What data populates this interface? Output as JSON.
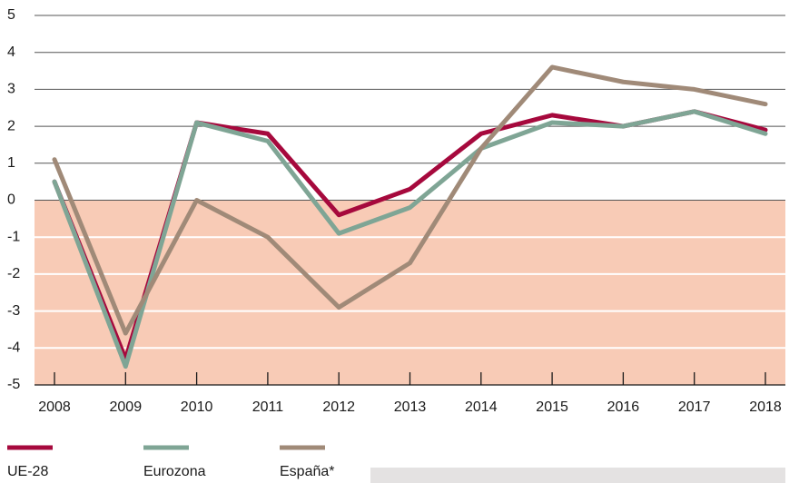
{
  "chart_data": {
    "type": "line",
    "categories": [
      "2008",
      "2009",
      "2010",
      "2011",
      "2012",
      "2013",
      "2014",
      "2015",
      "2016",
      "2017",
      "2018"
    ],
    "series": [
      {
        "name": "UE-28",
        "color": "#a6093d",
        "values": [
          0.5,
          -4.3,
          2.1,
          1.8,
          -0.4,
          0.3,
          1.8,
          2.3,
          2.0,
          2.4,
          1.9
        ]
      },
      {
        "name": "Eurozona",
        "color": "#7fa595",
        "values": [
          0.5,
          -4.5,
          2.1,
          1.6,
          -0.9,
          -0.2,
          1.4,
          2.1,
          2.0,
          2.4,
          1.8
        ]
      },
      {
        "name": "España*",
        "color": "#a08a78",
        "values": [
          1.1,
          -3.6,
          0.0,
          -1.0,
          -2.9,
          -1.7,
          1.4,
          3.6,
          3.2,
          3.0,
          2.6
        ]
      }
    ],
    "ylim": [
      -5,
      5
    ],
    "yticks": [
      -5,
      -4,
      -3,
      -2,
      -1,
      0,
      1,
      2,
      3,
      4,
      5
    ],
    "grid": true,
    "negative_shade_color": "#f8cbb6",
    "legend": "bottom"
  }
}
